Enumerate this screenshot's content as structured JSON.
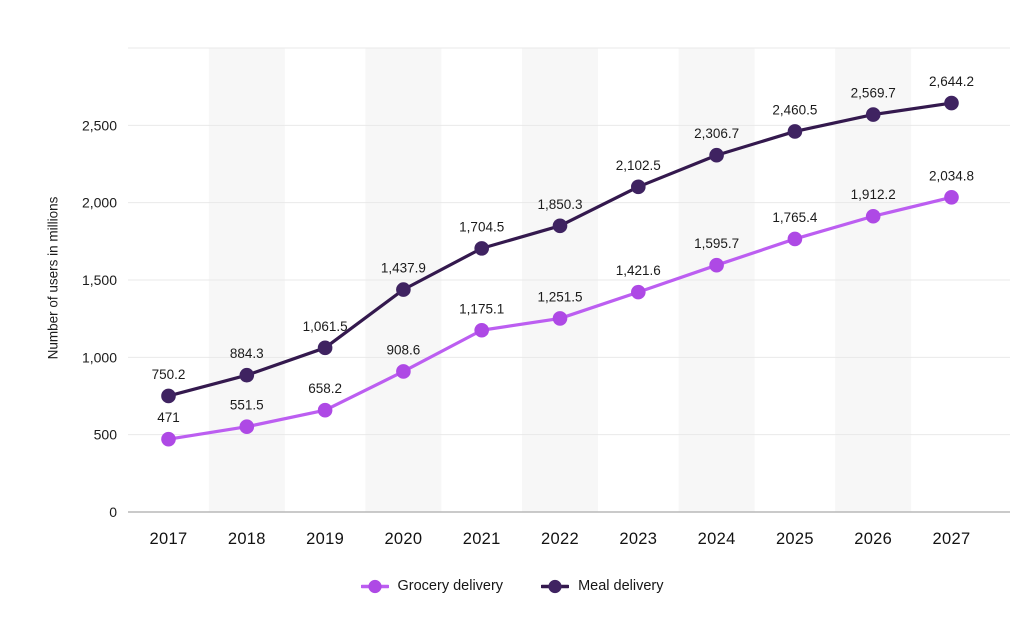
{
  "chart_data": {
    "type": "line",
    "title": "",
    "ylabel": "Number of users in millions",
    "categories": [
      "2017",
      "2018",
      "2019",
      "2020",
      "2021",
      "2022",
      "2023",
      "2024",
      "2025",
      "2026",
      "2027"
    ],
    "series": [
      {
        "name": "Grocery delivery",
        "line_color": "#bc5ef1",
        "marker_color": "#ae49e5",
        "values": [
          471,
          551.5,
          658.2,
          908.6,
          1175.1,
          1251.5,
          1421.6,
          1595.7,
          1765.4,
          1912.2,
          2034.8
        ],
        "labels": [
          "471",
          "551.5",
          "658.2",
          "908.6",
          "1,175.1",
          "1,251.5",
          "1,421.6",
          "1,595.7",
          "1,765.4",
          "1,912.2",
          "2,034.8"
        ]
      },
      {
        "name": "Meal delivery",
        "line_color": "#34194e",
        "marker_color": "#3f2361",
        "values": [
          750.2,
          884.3,
          1061.5,
          1437.9,
          1704.5,
          1850.3,
          2102.5,
          2306.7,
          2460.5,
          2569.7,
          2644.2
        ],
        "labels": [
          "750.2",
          "884.3",
          "1,061.5",
          "1,437.9",
          "1,704.5",
          "1,850.3",
          "2,102.5",
          "2,306.7",
          "2,460.5",
          "2,569.7",
          "2,644.2"
        ]
      }
    ],
    "ylim": [
      0,
      3000
    ],
    "yticks": [
      {
        "value": 0,
        "label": "0"
      },
      {
        "value": 500,
        "label": "500"
      },
      {
        "value": 1000,
        "label": "1,000"
      },
      {
        "value": 1500,
        "label": "1,500"
      },
      {
        "value": 2000,
        "label": "2,000"
      },
      {
        "value": 2500,
        "label": "2,500"
      }
    ],
    "gridlines": [
      500,
      1000,
      1500,
      2000,
      2500,
      3000
    ],
    "grid": "horizontal",
    "legend_position": "bottom",
    "background_bands": {
      "on_categories": [
        "2018",
        "2020",
        "2022",
        "2024",
        "2026"
      ],
      "color": "#f7f7f7"
    },
    "colors": {
      "gridline": "#e9e9e9",
      "axis_line": "#b8b8b8",
      "text": "#1b1b1b"
    }
  }
}
